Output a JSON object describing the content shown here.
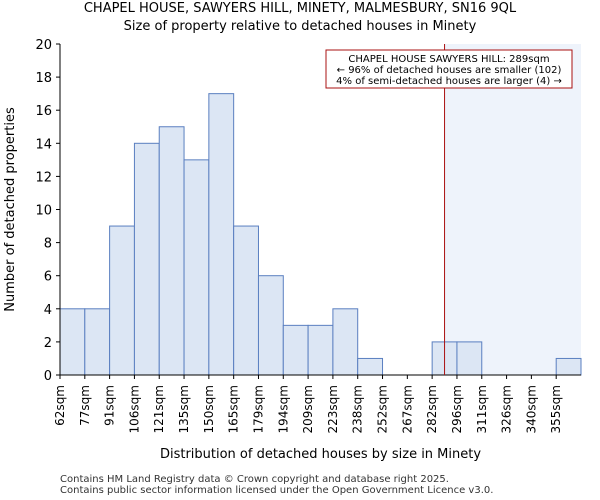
{
  "page_title_line1": "CHAPEL HOUSE, SAWYERS HILL, MINETY, MALMESBURY, SN16 9QL",
  "page_title_line2": "Size of property relative to detached houses in Minety",
  "footer_line1": "Contains HM Land Registry data © Crown copyright and database right 2025.",
  "footer_line2": "Contains public sector information licensed under the Open Government Licence v3.0.",
  "chart_data": {
    "type": "bar",
    "title": "Size of property relative to detached houses in Minety",
    "xlabel": "Distribution of detached houses by size in Minety",
    "ylabel": "Number of detached properties",
    "ylim": [
      0,
      20
    ],
    "yticks": [
      0,
      2,
      4,
      6,
      8,
      10,
      12,
      14,
      16,
      18,
      20
    ],
    "categories": [
      "62sqm",
      "77sqm",
      "91sqm",
      "106sqm",
      "121sqm",
      "135sqm",
      "150sqm",
      "165sqm",
      "179sqm",
      "194sqm",
      "209sqm",
      "223sqm",
      "238sqm",
      "252sqm",
      "267sqm",
      "282sqm",
      "296sqm",
      "311sqm",
      "326sqm",
      "340sqm",
      "355sqm"
    ],
    "values": [
      4,
      4,
      9,
      14,
      15,
      13,
      17,
      9,
      6,
      3,
      3,
      4,
      1,
      0,
      0,
      2,
      2,
      0,
      0,
      0,
      1
    ],
    "marker": {
      "value_bin_position": 15.5,
      "label": "CHAPEL HOUSE SAWYERS HILL: 289sqm",
      "line2": "← 96% of detached houses are smaller (102)",
      "line3": "4% of semi-detached houses are larger (4) →",
      "line_color": "#aa1111"
    },
    "colors": {
      "bar_fill": "#dce6f4",
      "bar_stroke": "#5a7fc0",
      "highlight": "#eef3fb"
    }
  }
}
